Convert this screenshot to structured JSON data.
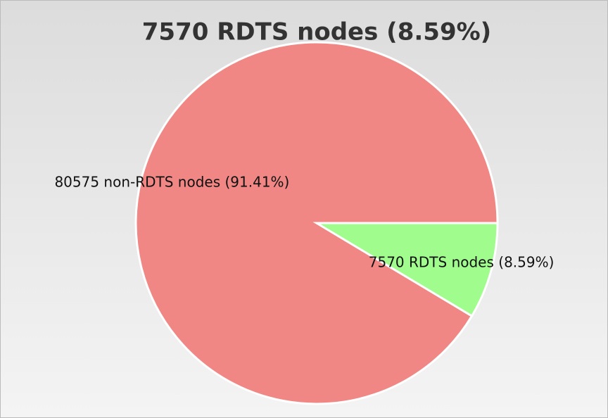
{
  "chart_data": {
    "type": "pie",
    "title": "7570 RDTS nodes (8.59%)",
    "values": [
      80575,
      7570
    ],
    "value_labels": [
      "80575 non-RDTS nodes (91.41%)",
      "7570 RDTS nodes (8.59%)"
    ],
    "colors": [
      "#f08784",
      "#a0fc8c"
    ]
  }
}
